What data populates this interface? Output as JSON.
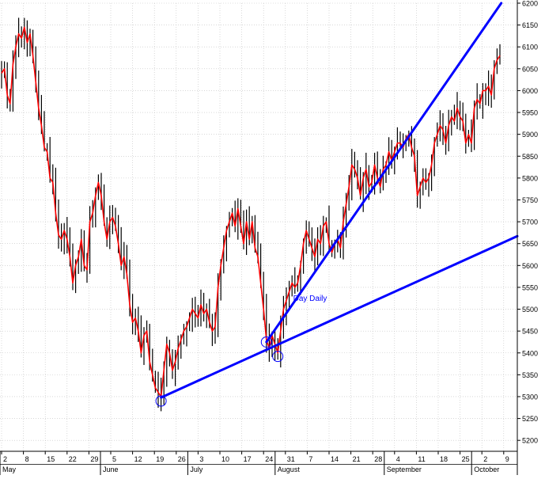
{
  "chart_data": {
    "type": "ohlc-line",
    "annotation": "Day Daily",
    "y_axis": {
      "side": "right",
      "ylim": [
        5175,
        6200
      ],
      "ticks": [
        5200,
        5250,
        5300,
        5350,
        5400,
        5450,
        5500,
        5550,
        5600,
        5650,
        5700,
        5750,
        5800,
        5850,
        5900,
        5950,
        6000,
        6050,
        6100,
        6150,
        6200
      ]
    },
    "x_axis": {
      "day_ticks": [
        "2",
        "8",
        "15",
        "22",
        "29",
        "5",
        "12",
        "19",
        "26",
        "3",
        "10",
        "17",
        "24",
        "31",
        "7",
        "14",
        "21",
        "28",
        "4",
        "11",
        "18",
        "25",
        "2",
        "9"
      ],
      "month_labels": [
        "May",
        "June",
        "July",
        "August",
        "September",
        "October"
      ]
    },
    "grid": true,
    "colors": {
      "bars": "#000000",
      "close_line": "#ff0000",
      "trendlines": "#0000ff",
      "grid": "#c0c0c0",
      "markers": "#0000ff"
    },
    "series": {
      "close": [
        6040,
        6050,
        5990,
        5970,
        6060,
        6100,
        6130,
        6120,
        6145,
        6110,
        6130,
        6080,
        6020,
        5960,
        5920,
        5870,
        5860,
        5800,
        5790,
        5720,
        5670,
        5660,
        5680,
        5660,
        5620,
        5560,
        5600,
        5620,
        5660,
        5600,
        5590,
        5700,
        5720,
        5760,
        5790,
        5760,
        5700,
        5660,
        5700,
        5710,
        5690,
        5650,
        5600,
        5620,
        5580,
        5510,
        5470,
        5480,
        5450,
        5400,
        5440,
        5450,
        5380,
        5350,
        5320,
        5310,
        5300,
        5360,
        5420,
        5400,
        5360,
        5380,
        5410,
        5430,
        5450,
        5460,
        5480,
        5500,
        5490,
        5480,
        5510,
        5490,
        5500,
        5470,
        5450,
        5460,
        5550,
        5600,
        5640,
        5680,
        5700,
        5720,
        5690,
        5730,
        5690,
        5650,
        5700,
        5660,
        5700,
        5640,
        5620,
        5560,
        5500,
        5430,
        5410,
        5440,
        5420,
        5400,
        5450,
        5500,
        5520,
        5540,
        5560,
        5550,
        5560,
        5600,
        5650,
        5680,
        5660,
        5640,
        5620,
        5660,
        5650,
        5690,
        5700,
        5650,
        5630,
        5650,
        5660,
        5640,
        5700,
        5740,
        5780,
        5830,
        5820,
        5800,
        5760,
        5800,
        5820,
        5780,
        5790,
        5830,
        5800,
        5780,
        5820,
        5830,
        5860,
        5840,
        5860,
        5880,
        5880,
        5870,
        5890,
        5900,
        5870,
        5850,
        5760,
        5780,
        5800,
        5790,
        5800,
        5830,
        5880,
        5900,
        5920,
        5910,
        5880,
        5920,
        5940,
        5930,
        5960,
        5940,
        5930,
        5880,
        5900,
        5880,
        5960,
        5980,
        5970,
        6000,
        6000,
        6010,
        5990,
        6050,
        6070,
        6080
      ]
    },
    "trendlines": [
      {
        "from_bar": 56,
        "to_bar": 176,
        "from_value": 5298,
        "to_value": 5652
      },
      {
        "from_bar": 93,
        "to_bar": 176,
        "from_value": 5425,
        "to_value": 6205
      }
    ],
    "markers": [
      {
        "bar": 56,
        "value": 5290
      },
      {
        "bar": 93,
        "value": 5425
      },
      {
        "bar": 97,
        "value": 5392
      }
    ]
  }
}
